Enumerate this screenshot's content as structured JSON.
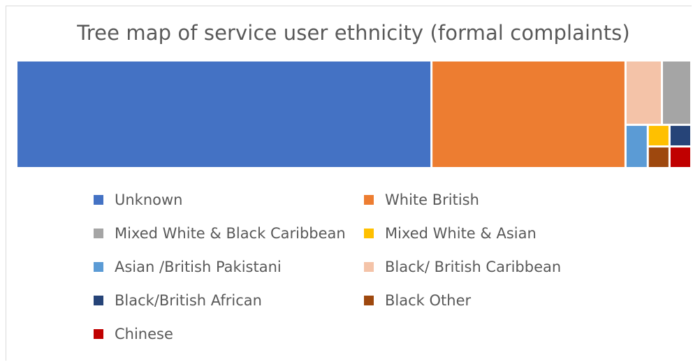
{
  "chart_data": {
    "type": "treemap",
    "title": "Tree map of service user ethnicity (formal complaints)",
    "categories": [
      "Unknown",
      "White British",
      "Black/ British Caribbean",
      "Mixed White & Black Caribbean",
      "Asian /British Pakistani",
      "Mixed White & Asian",
      "Black/British African",
      "Black Other",
      "Chinese"
    ],
    "values": [
      96,
      45,
      5,
      4,
      2,
      1,
      1,
      1,
      1
    ],
    "colors": [
      "#4472C4",
      "#ED7D31",
      "#F4C3A8",
      "#A5A5A5",
      "#5B9BD5",
      "#FFC000",
      "#264478",
      "#9E480E",
      "#C00000"
    ],
    "legend": [
      {
        "label": "Unknown",
        "color": "#4472C4"
      },
      {
        "label": "White British",
        "color": "#ED7D31"
      },
      {
        "label": "Mixed White & Black Caribbean",
        "color": "#A5A5A5"
      },
      {
        "label": "Mixed White & Asian",
        "color": "#FFC000"
      },
      {
        "label": "Asian /British Pakistani",
        "color": "#5B9BD5"
      },
      {
        "label": "Black/ British Caribbean",
        "color": "#F4C3A8"
      },
      {
        "label": "Black/British African",
        "color": "#264478"
      },
      {
        "label": "Black Other",
        "color": "#9E480E"
      },
      {
        "label": "Chinese",
        "color": "#C00000"
      }
    ],
    "legend_position": "bottom",
    "grid": false
  }
}
